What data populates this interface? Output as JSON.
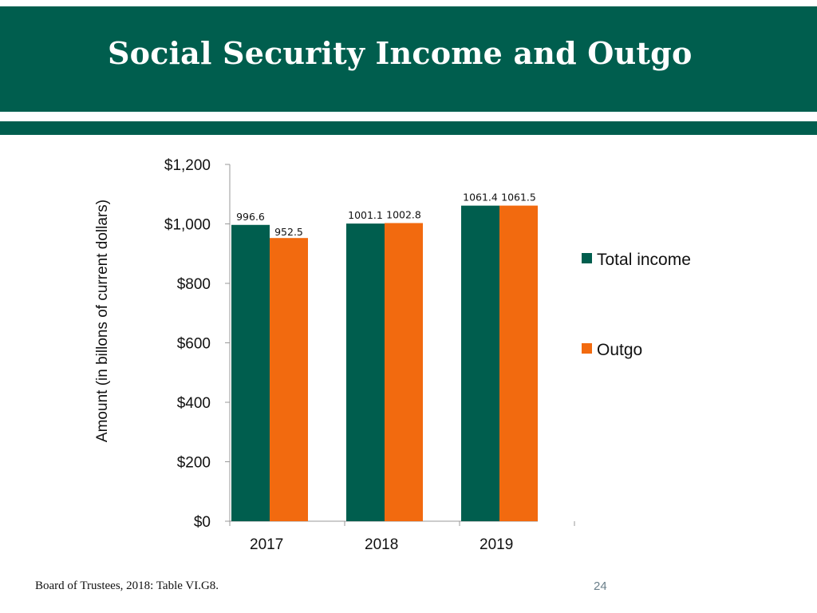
{
  "slide": {
    "title": "Social Security Income and Outgo",
    "source": "Board of Trustees, 2018: Table VI.G8.",
    "page_number": "24"
  },
  "colors": {
    "brand_green": "#005e4e",
    "income": "#005e4e",
    "outgo": "#f26a0f"
  },
  "chart_data": {
    "type": "bar",
    "categories": [
      "2017",
      "2018",
      "2019"
    ],
    "series": [
      {
        "name": "Total income",
        "values": [
          996.6,
          1001.1,
          1061.4
        ],
        "color": "#005e4e"
      },
      {
        "name": "Outgo",
        "values": [
          952.5,
          1002.8,
          1061.5
        ],
        "color": "#f26a0f"
      }
    ],
    "data_labels": [
      [
        "996.6",
        "1001.1",
        "1061.4"
      ],
      [
        "952.5",
        "1002.8",
        "1061.5"
      ]
    ],
    "ylabel": "Amount (in billons of current dollars)",
    "xlabel": "",
    "ylim": [
      0,
      1200
    ],
    "yticks": [
      0,
      200,
      400,
      600,
      800,
      1000,
      1200
    ],
    "ytick_labels": [
      "$0",
      "$200",
      "$400",
      "$600",
      "$800",
      "$1,000",
      "$1,200"
    ],
    "grid": false,
    "legend_position": "right"
  }
}
